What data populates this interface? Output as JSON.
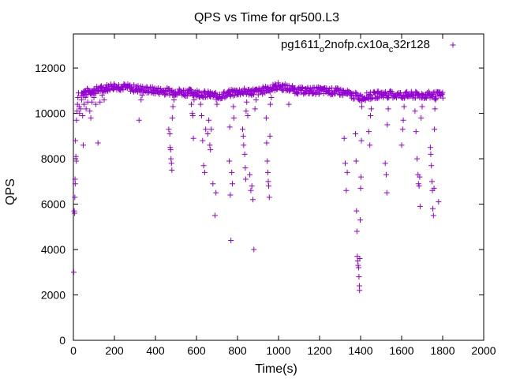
{
  "chart_data": {
    "type": "scatter",
    "title": "QPS vs Time for qr500.L3",
    "xlabel": "Time(s)",
    "ylabel": "QPS",
    "xlim": [
      0,
      2000
    ],
    "ylim": [
      0,
      13500
    ],
    "xticks": [
      0,
      200,
      400,
      600,
      800,
      1000,
      1200,
      1400,
      1600,
      1800,
      2000
    ],
    "yticks": [
      0,
      2000,
      4000,
      6000,
      8000,
      10000,
      12000
    ],
    "grid": false,
    "legend": {
      "position": "top-right",
      "parts": [
        {
          "text": "pg1611",
          "sub": false
        },
        {
          "text": "o",
          "sub": true
        },
        {
          "text": "2nofp.cx10a",
          "sub": false
        },
        {
          "text": "c",
          "sub": true
        },
        {
          "text": "32r128",
          "sub": false
        }
      ],
      "marker": "+"
    },
    "series": [
      {
        "name": "pg1611_o2nofp.cx10a_c32r128",
        "color": "#9400d3",
        "marker": "+",
        "points": [
          [
            2,
            3000
          ],
          [
            4,
            5700
          ],
          [
            6,
            5600
          ],
          [
            7,
            6300
          ],
          [
            8,
            7100
          ],
          [
            9,
            6900
          ],
          [
            10,
            8800
          ],
          [
            12,
            8100
          ],
          [
            14,
            7900
          ],
          [
            15,
            9700
          ],
          [
            18,
            10100
          ],
          [
            20,
            10400
          ],
          [
            22,
            10700
          ],
          [
            25,
            10900
          ],
          [
            28,
            10300
          ],
          [
            30,
            10000
          ],
          [
            35,
            10200
          ],
          [
            40,
            10600
          ],
          [
            45,
            9900
          ],
          [
            48,
            8600
          ],
          [
            52,
            10400
          ],
          [
            58,
            10700
          ],
          [
            62,
            10200
          ],
          [
            70,
            10500
          ],
          [
            80,
            10100
          ],
          [
            85,
            9800
          ],
          [
            90,
            10500
          ],
          [
            100,
            10700
          ],
          [
            110,
            10400
          ],
          [
            120,
            8700
          ],
          [
            130,
            10500
          ],
          [
            140,
            10800
          ],
          [
            150,
            10600
          ],
          [
            320,
            9700
          ],
          [
            330,
            10600
          ],
          [
            335,
            10800
          ],
          [
            465,
            9300
          ],
          [
            470,
            9100
          ],
          [
            472,
            8500
          ],
          [
            474,
            8400
          ],
          [
            476,
            8000
          ],
          [
            478,
            7800
          ],
          [
            480,
            7500
          ],
          [
            482,
            9800
          ],
          [
            485,
            10300
          ],
          [
            490,
            10600
          ],
          [
            575,
            10400
          ],
          [
            580,
            10000
          ],
          [
            582,
            9900
          ],
          [
            585,
            8900
          ],
          [
            588,
            10600
          ],
          [
            620,
            10400
          ],
          [
            625,
            9900
          ],
          [
            630,
            8800
          ],
          [
            635,
            7700
          ],
          [
            640,
            7400
          ],
          [
            645,
            9300
          ],
          [
            655,
            9100
          ],
          [
            660,
            9700
          ],
          [
            665,
            8600
          ],
          [
            668,
            8400
          ],
          [
            672,
            9300
          ],
          [
            680,
            6900
          ],
          [
            690,
            5500
          ],
          [
            695,
            6500
          ],
          [
            700,
            10400
          ],
          [
            760,
            7900
          ],
          [
            762,
            9400
          ],
          [
            765,
            6400
          ],
          [
            768,
            4400
          ],
          [
            772,
            7400
          ],
          [
            775,
            6900
          ],
          [
            780,
            10300
          ],
          [
            782,
            9800
          ],
          [
            825,
            9300
          ],
          [
            828,
            9000
          ],
          [
            830,
            8600
          ],
          [
            835,
            8200
          ],
          [
            838,
            7600
          ],
          [
            840,
            7100
          ],
          [
            842,
            10100
          ],
          [
            845,
            10500
          ],
          [
            850,
            9900
          ],
          [
            860,
            7300
          ],
          [
            865,
            6600
          ],
          [
            870,
            6800
          ],
          [
            875,
            6200
          ],
          [
            880,
            4000
          ],
          [
            885,
            10200
          ],
          [
            890,
            10600
          ],
          [
            940,
            9800
          ],
          [
            942,
            8700
          ],
          [
            945,
            7900
          ],
          [
            948,
            7400
          ],
          [
            950,
            7000
          ],
          [
            952,
            6800
          ],
          [
            955,
            6300
          ],
          [
            958,
            9000
          ],
          [
            960,
            10400
          ],
          [
            965,
            10700
          ],
          [
            1050,
            10400
          ],
          [
            1320,
            8900
          ],
          [
            1325,
            7800
          ],
          [
            1330,
            6600
          ],
          [
            1335,
            7400
          ],
          [
            1375,
            9100
          ],
          [
            1378,
            7900
          ],
          [
            1380,
            5700
          ],
          [
            1382,
            4800
          ],
          [
            1384,
            3700
          ],
          [
            1386,
            3500
          ],
          [
            1388,
            3300
          ],
          [
            1390,
            3200
          ],
          [
            1392,
            2800
          ],
          [
            1394,
            2400
          ],
          [
            1395,
            2200
          ],
          [
            1396,
            3600
          ],
          [
            1398,
            5300
          ],
          [
            1400,
            6700
          ],
          [
            1402,
            7200
          ],
          [
            1404,
            8800
          ],
          [
            1406,
            10300
          ],
          [
            1440,
            9200
          ],
          [
            1445,
            8600
          ],
          [
            1448,
            9900
          ],
          [
            1452,
            10200
          ],
          [
            1520,
            7800
          ],
          [
            1525,
            7300
          ],
          [
            1528,
            6500
          ],
          [
            1530,
            9500
          ],
          [
            1535,
            10200
          ],
          [
            1600,
            8600
          ],
          [
            1605,
            9300
          ],
          [
            1608,
            9700
          ],
          [
            1612,
            10300
          ],
          [
            1665,
            10100
          ],
          [
            1670,
            9200
          ],
          [
            1675,
            8000
          ],
          [
            1680,
            7300
          ],
          [
            1682,
            6900
          ],
          [
            1685,
            6800
          ],
          [
            1688,
            7200
          ],
          [
            1690,
            5900
          ],
          [
            1695,
            9800
          ],
          [
            1700,
            10300
          ],
          [
            1740,
            8500
          ],
          [
            1742,
            8200
          ],
          [
            1745,
            7700
          ],
          [
            1748,
            7000
          ],
          [
            1750,
            6600
          ],
          [
            1752,
            5800
          ],
          [
            1755,
            5500
          ],
          [
            1758,
            6700
          ],
          [
            1760,
            9300
          ],
          [
            1762,
            10200
          ],
          [
            1765,
            10600
          ],
          [
            1780,
            6100
          ],
          [
            1790,
            10800
          ]
        ],
        "band": {
          "x_start": 40,
          "x_end": 1800,
          "step": 5,
          "y_profile": [
            [
              40,
              10900
            ],
            [
              100,
              11000
            ],
            [
              200,
              11200
            ],
            [
              300,
              11100
            ],
            [
              400,
              11000
            ],
            [
              500,
              10950
            ],
            [
              600,
              10900
            ],
            [
              700,
              10750
            ],
            [
              800,
              10950
            ],
            [
              900,
              10950
            ],
            [
              1000,
              11200
            ],
            [
              1100,
              11000
            ],
            [
              1200,
              11000
            ],
            [
              1300,
              10950
            ],
            [
              1400,
              10700
            ],
            [
              1500,
              10850
            ],
            [
              1600,
              10800
            ],
            [
              1700,
              10800
            ],
            [
              1800,
              10800
            ]
          ],
          "spread": 320
        }
      }
    ]
  }
}
